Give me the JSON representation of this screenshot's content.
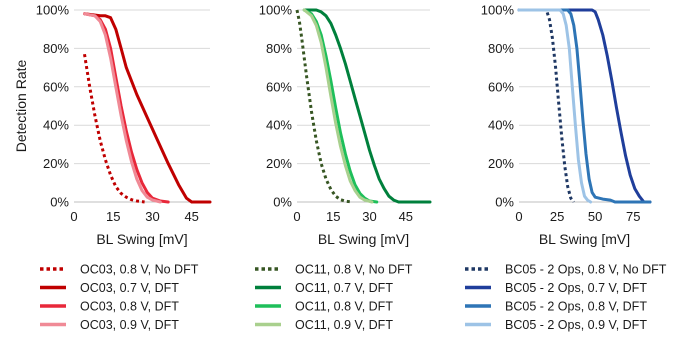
{
  "chart_data": [
    {
      "type": "line",
      "xlabel": "BL Swing [mV]",
      "ylabel": "Detection Rate",
      "xlim": [
        0,
        52
      ],
      "ylim": [
        0,
        100
      ],
      "x_ticks": [
        0,
        15,
        30,
        45
      ],
      "y_ticks": [
        0,
        20,
        40,
        60,
        80,
        100
      ],
      "y_tick_labels": [
        "0%",
        "20%",
        "40%",
        "60%",
        "80%",
        "100%"
      ],
      "grid": "horizontal",
      "series": [
        {
          "name": "OC03, 0.8 V, No DFT",
          "color": "#c00000",
          "dash": "dotted",
          "x": [
            4,
            6,
            8,
            10,
            12,
            14,
            16,
            18,
            20,
            22,
            24,
            27
          ],
          "y": [
            77,
            60,
            45,
            32,
            22,
            14,
            8,
            4.5,
            2.5,
            1.2,
            0.5,
            0
          ]
        },
        {
          "name": "OC03, 0.7 V, DFT",
          "color": "#c00000",
          "dash": "solid",
          "x": [
            4,
            10,
            12,
            14,
            16,
            18,
            20,
            24,
            28,
            32,
            36,
            40,
            43,
            45,
            52
          ],
          "y": [
            98,
            97,
            97,
            96,
            90,
            80,
            70,
            56,
            44,
            32,
            20,
            9,
            2,
            0,
            0
          ]
        },
        {
          "name": "OC03, 0.8 V, DFT",
          "color": "#e8283a",
          "dash": "solid",
          "x": [
            4,
            8,
            10,
            12,
            14,
            16,
            18,
            20,
            22,
            24,
            26,
            28,
            30,
            33,
            36
          ],
          "y": [
            98,
            97,
            95,
            90,
            80,
            65,
            50,
            37,
            26,
            17,
            10,
            5,
            2,
            0.5,
            0
          ]
        },
        {
          "name": "OC03, 0.9 V, DFT",
          "color": "#f08a96",
          "dash": "solid",
          "x": [
            4,
            8,
            10,
            12,
            14,
            16,
            18,
            20,
            22,
            24,
            26,
            28,
            30,
            33
          ],
          "y": [
            98,
            97,
            94,
            87,
            75,
            60,
            45,
            32,
            21,
            12,
            6,
            2.5,
            1,
            0
          ]
        }
      ]
    },
    {
      "type": "line",
      "xlabel": "BL Swing [mV]",
      "ylabel": "",
      "xlim": [
        0,
        55
      ],
      "ylim": [
        0,
        100
      ],
      "x_ticks": [
        0,
        15,
        30,
        45
      ],
      "y_ticks": [
        0,
        20,
        40,
        60,
        80,
        100
      ],
      "y_tick_labels": [
        "0%",
        "20%",
        "40%",
        "60%",
        "80%",
        "100%"
      ],
      "grid": "horizontal",
      "series": [
        {
          "name": "OC11, 0.8 V, No DFT",
          "color": "#375623",
          "dash": "dotted",
          "x": [
            0,
            1,
            2,
            4,
            6,
            8,
            10,
            12,
            14,
            16,
            18,
            20,
            23
          ],
          "y": [
            100,
            94,
            85,
            65,
            47,
            32,
            20,
            12,
            6.5,
            3,
            1.2,
            0.4,
            0
          ]
        },
        {
          "name": "OC11, 0.7 V, DFT",
          "color": "#00803c",
          "dash": "solid",
          "x": [
            3,
            8,
            10,
            12,
            14,
            16,
            18,
            20,
            22,
            24,
            26,
            28,
            30,
            32,
            34,
            36,
            38,
            40,
            42,
            55
          ],
          "y": [
            100,
            100,
            99,
            97,
            93,
            87,
            80,
            72,
            63,
            54,
            45,
            36,
            27,
            19,
            12,
            7,
            3,
            1,
            0,
            0
          ]
        },
        {
          "name": "OC11, 0.8 V, DFT",
          "color": "#1ebf5a",
          "dash": "solid",
          "x": [
            3,
            6,
            8,
            10,
            12,
            14,
            16,
            18,
            20,
            22,
            24,
            26,
            28,
            30,
            33
          ],
          "y": [
            100,
            98,
            94,
            87,
            76,
            63,
            49,
            36,
            25,
            16,
            9,
            4.5,
            2,
            0.5,
            0
          ]
        },
        {
          "name": "OC11, 0.9 V, DFT",
          "color": "#a9d08e",
          "dash": "solid",
          "x": [
            3,
            6,
            8,
            10,
            12,
            14,
            16,
            18,
            20,
            22,
            24,
            26,
            28,
            31
          ],
          "y": [
            100,
            97,
            92,
            83,
            70,
            55,
            41,
            29,
            19,
            11,
            6,
            2.5,
            1,
            0
          ]
        }
      ]
    },
    {
      "type": "line",
      "xlabel": "BL Swing [mV]",
      "ylabel": "",
      "xlim": [
        0,
        86
      ],
      "ylim": [
        0,
        100
      ],
      "x_ticks": [
        0,
        25,
        50,
        75
      ],
      "y_ticks": [
        0,
        20,
        40,
        60,
        80,
        100
      ],
      "y_tick_labels": [
        "0%",
        "20%",
        "40%",
        "60%",
        "80%",
        "100%"
      ],
      "grid": "horizontal",
      "series": [
        {
          "name": "BC05 - 2 Ops, 0.8 V, No DFT",
          "color": "#1f3864",
          "dash": "dotted",
          "x": [
            0,
            18,
            20,
            22,
            24,
            26,
            28,
            30,
            32,
            34,
            36
          ],
          "y": [
            100,
            100,
            95,
            85,
            70,
            52,
            34,
            19,
            8,
            2,
            0
          ]
        },
        {
          "name": "BC05 - 2 Ops, 0.7 V, DFT",
          "color": "#1f3e9b",
          "dash": "solid",
          "x": [
            0,
            48,
            50,
            52,
            55,
            58,
            61,
            64,
            67,
            70,
            73,
            76,
            79,
            82,
            86
          ],
          "y": [
            100,
            100,
            99,
            95,
            87,
            76,
            63,
            49,
            36,
            24,
            14,
            7,
            3,
            0,
            0
          ]
        },
        {
          "name": "BC05 - 2 Ops, 0.8 V, DFT",
          "color": "#2e75b6",
          "dash": "solid",
          "x": [
            0,
            32,
            34,
            36,
            38,
            40,
            42,
            44,
            46,
            48,
            50,
            55,
            60,
            63,
            86
          ],
          "y": [
            100,
            100,
            98,
            92,
            80,
            62,
            42,
            25,
            12,
            5,
            2.5,
            1.5,
            1,
            0,
            0
          ]
        },
        {
          "name": "BC05 - 2 Ops, 0.9 V, DFT",
          "color": "#9dc3e6",
          "dash": "solid",
          "x": [
            0,
            27,
            29,
            31,
            33,
            35,
            37,
            39,
            41,
            43,
            45,
            47
          ],
          "y": [
            100,
            100,
            98,
            92,
            80,
            60,
            40,
            22,
            10,
            3,
            1,
            0
          ]
        }
      ]
    }
  ]
}
